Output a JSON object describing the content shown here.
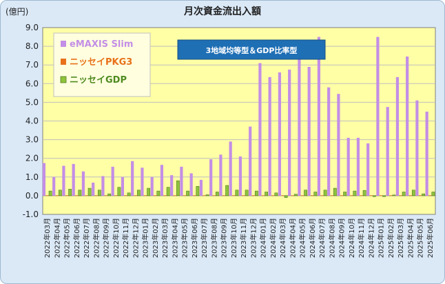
{
  "chart_data": {
    "type": "bar",
    "title": "月次資金流出入額",
    "ylabel": "(億円)",
    "xlabel": "",
    "ylim": [
      -1.0,
      9.0
    ],
    "yticks": [
      "9.0",
      "8.0",
      "7.0",
      "6.0",
      "5.0",
      "4.0",
      "3.0",
      "2.0",
      "1.0",
      "0.0",
      "-1.0"
    ],
    "grid": true,
    "legend_position": "top-left",
    "annotation": "3地域均等型＆GDP比率型",
    "categories": [
      "2022年03月",
      "2022年04月",
      "2022年05月",
      "2022年06月",
      "2022年07月",
      "2022年08月",
      "2022年09月",
      "2022年10月",
      "2022年11月",
      "2022年12月",
      "2023年01月",
      "2023年02月",
      "2023年03月",
      "2023年04月",
      "2023年05月",
      "2023年06月",
      "2023年07月",
      "2023年08月",
      "2023年09月",
      "2023年10月",
      "2023年11月",
      "2023年12月",
      "2024年01月",
      "2024年02月",
      "2024年03月",
      "2024年04月",
      "2024年05月",
      "2024年06月",
      "2024年07月",
      "2024年08月",
      "2024年09月",
      "2024年10月",
      "2024年11月",
      "2024年12月",
      "2025年01月",
      "2025年02月",
      "2025年03月",
      "2025年04月",
      "2025年05月",
      "2025年06月"
    ],
    "series": [
      {
        "name": "eMAXIS Slim",
        "color": "#c38ee6",
        "values": [
          1.75,
          1.0,
          1.6,
          1.7,
          1.3,
          0.7,
          1.05,
          1.55,
          1.0,
          1.85,
          1.5,
          1.0,
          1.65,
          1.1,
          1.55,
          1.2,
          0.85,
          1.95,
          2.2,
          2.9,
          2.1,
          3.7,
          7.1,
          6.35,
          6.6,
          6.75,
          7.3,
          6.9,
          8.5,
          5.8,
          5.45,
          3.1,
          3.1,
          2.8,
          8.5,
          4.75,
          6.35,
          7.45,
          5.1,
          4.5
        ]
      },
      {
        "name": "ニッセイPKG3",
        "color": "#e8711a",
        "values": [
          0.02,
          0.02,
          0.02,
          0.02,
          0.02,
          0.02,
          0.02,
          0.02,
          0.02,
          0.02,
          0.02,
          0.02,
          0.02,
          0.02,
          0.02,
          0.02,
          0.02,
          0.02,
          0.02,
          0.02,
          0.02,
          0.02,
          0.02,
          0.02,
          0.02,
          0.02,
          0.02,
          0.02,
          0.02,
          0.02,
          0.02,
          0.02,
          0.02,
          0.02,
          0.02,
          0.02,
          0.02,
          0.02,
          0.02,
          0.02
        ]
      },
      {
        "name": "ニッセイGDP",
        "color": "#8fc33c",
        "values": [
          0.25,
          0.3,
          0.35,
          0.3,
          0.4,
          0.3,
          0.1,
          0.45,
          0.15,
          0.3,
          0.4,
          0.25,
          0.45,
          0.8,
          0.25,
          0.5,
          0.05,
          0.2,
          0.55,
          0.3,
          0.3,
          0.25,
          0.2,
          0.15,
          -0.1,
          0.08,
          0.3,
          0.2,
          0.3,
          0.4,
          0.2,
          0.25,
          0.28,
          -0.05,
          -0.05,
          0.04,
          0.2,
          0.3,
          0.1,
          0.2
        ]
      }
    ]
  }
}
